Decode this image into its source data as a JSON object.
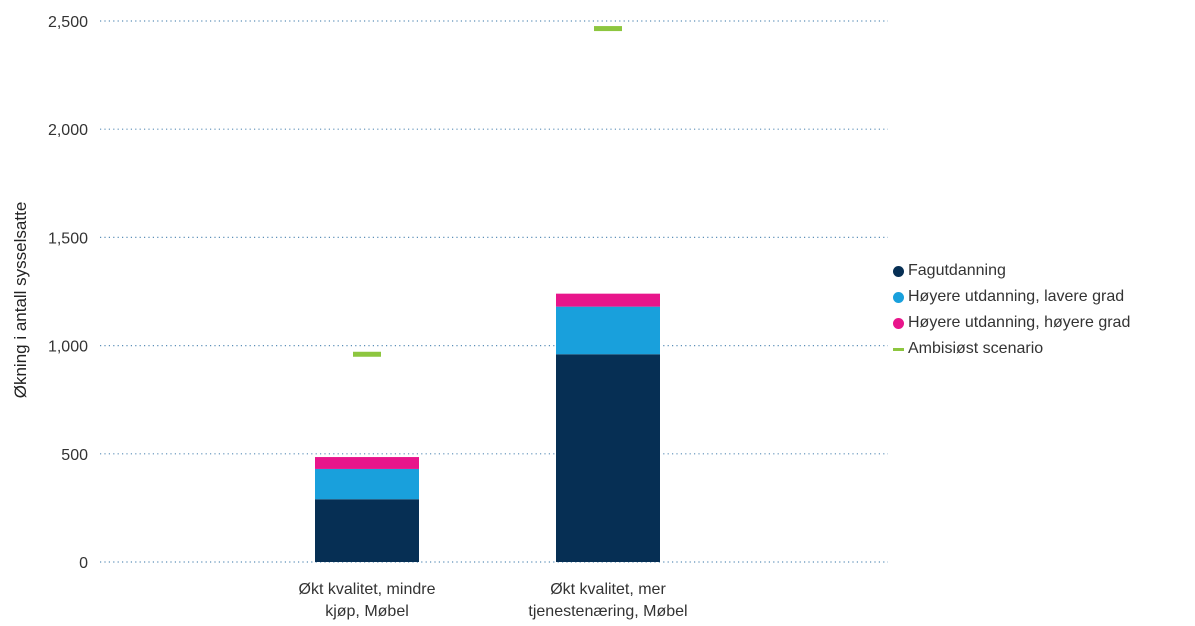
{
  "chart_data": {
    "type": "bar",
    "stacked": true,
    "ylabel": "Økning i antall sysselsatte",
    "ylim": [
      0,
      2500
    ],
    "yticks": [
      "0",
      "500",
      "1,000",
      "1,500",
      "2,000",
      "2,500"
    ],
    "ytick_values": [
      0,
      500,
      1000,
      1500,
      2000,
      2500
    ],
    "grid": "horizontal-dotted",
    "legend_position": "right",
    "categories": [
      [
        "Økt kvalitet, mindre",
        "kjøp, Møbel"
      ],
      [
        "Økt kvalitet, mer",
        "tjenestenæring, Møbel"
      ]
    ],
    "series": [
      {
        "name": "Fagutdanning",
        "color": "#062F54",
        "values": [
          290,
          960
        ]
      },
      {
        "name": "Høyere utdanning, lavere grad",
        "color": "#19A0DC",
        "values": [
          140,
          220
        ]
      },
      {
        "name": "Høyere utdanning, høyere grad",
        "color": "#E8158B",
        "values": [
          55,
          60
        ]
      }
    ],
    "markers": {
      "name": "Ambisiøst scenario",
      "color": "#8DC63F",
      "values": [
        960,
        2465
      ]
    }
  }
}
